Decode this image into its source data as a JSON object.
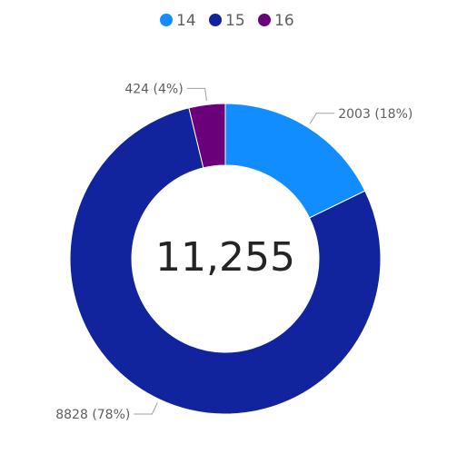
{
  "chart_data": {
    "type": "donut",
    "categories": [
      "14",
      "15",
      "16"
    ],
    "values": [
      2003,
      8828,
      424
    ],
    "value_labels": [
      "2003 (18%)",
      "8828 (78%)",
      "424 (4%)"
    ],
    "colors": [
      "#118dff",
      "#12239e",
      "#6b007b"
    ],
    "center_label": "11,255",
    "legend": "top"
  }
}
